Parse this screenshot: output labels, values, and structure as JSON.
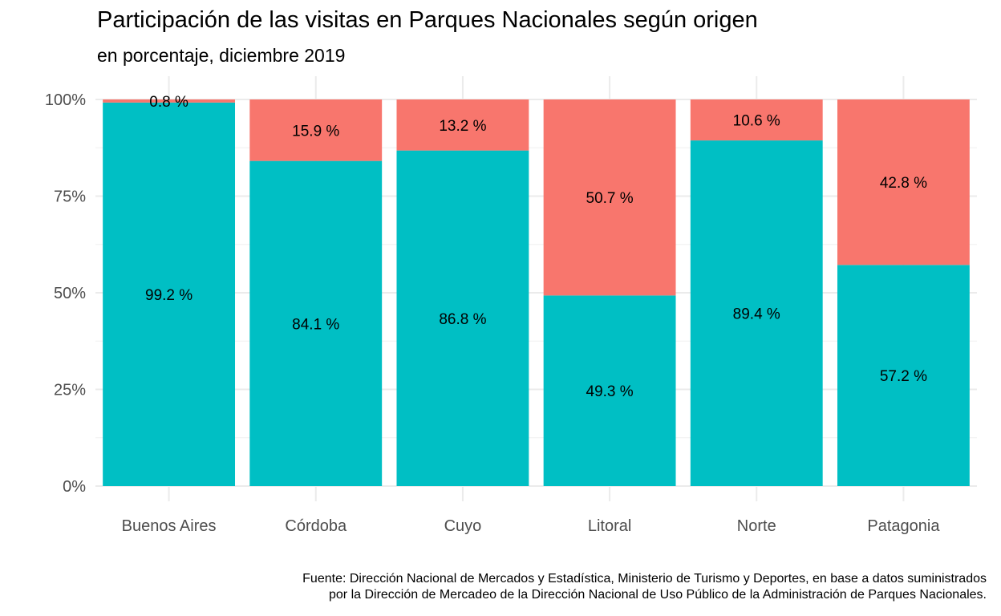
{
  "chart_data": {
    "type": "bar",
    "stacked": true,
    "title": "Participación de las visitas en Parques Nacionales según origen",
    "subtitle": "en porcentaje, diciembre 2019",
    "categories": [
      "Buenos Aires",
      "Córdoba",
      "Cuyo",
      "Litoral",
      "Norte",
      "Patagonia"
    ],
    "series": [
      {
        "color": "#00BFC4",
        "values": [
          99.2,
          84.1,
          86.8,
          49.3,
          89.4,
          57.2
        ],
        "labels": [
          "99.2 %",
          "84.1 %",
          "86.8 %",
          "49.3 %",
          "89.4 %",
          "57.2 %"
        ]
      },
      {
        "color": "#F8766D",
        "values": [
          0.8,
          15.9,
          13.2,
          50.7,
          10.6,
          42.8
        ],
        "labels": [
          "0.8 %",
          "15.9 %",
          "13.2 %",
          "50.7 %",
          "10.6 %",
          "42.8 %"
        ]
      }
    ],
    "yticks": [
      0,
      25,
      50,
      75,
      100
    ],
    "ytick_labels": [
      "0%",
      "25%",
      "50%",
      "75%",
      "100%"
    ],
    "ylim": [
      0,
      100
    ],
    "grid": true,
    "legend": "none",
    "caption": [
      "Fuente: Dirección Nacional de Mercados y Estadística, Ministerio de Turismo y Deportes, en base a datos suministrados",
      "por la Dirección de Mercadeo de la Dirección Nacional de Uso Público de la Administración de Parques Nacionales."
    ]
  }
}
